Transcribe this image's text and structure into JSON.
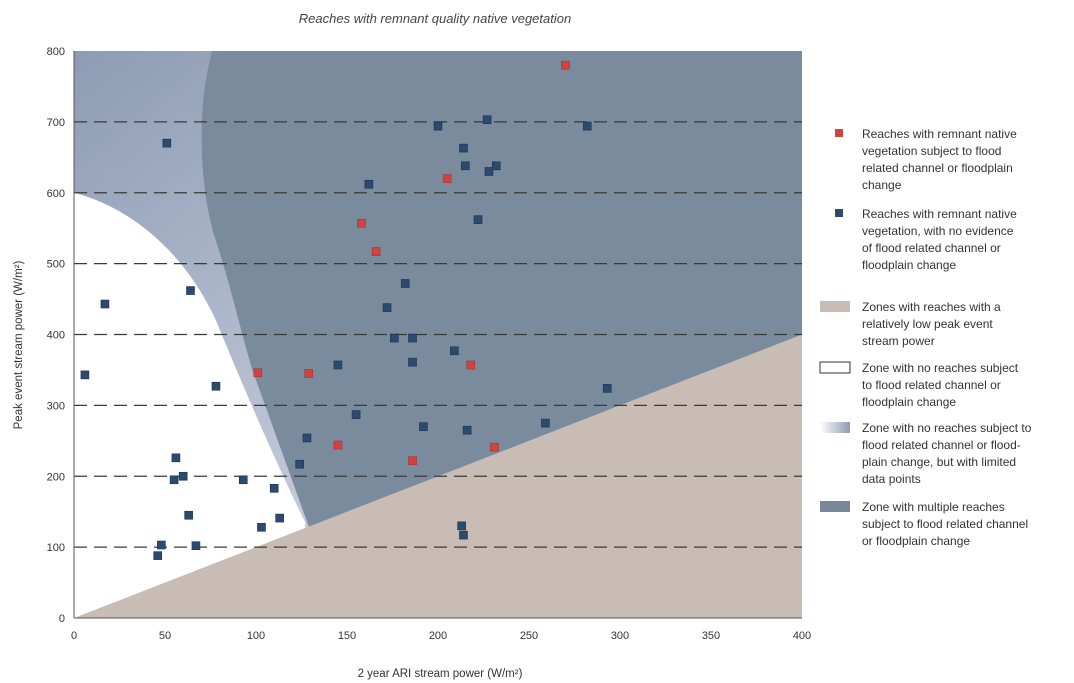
{
  "chart_data": {
    "type": "scatter",
    "title": "Reaches with remnant quality native vegetation",
    "xlabel": "2 year ARI stream power (W/m²)",
    "ylabel": "Peak event stream power (W/m²)",
    "xlim": [
      0,
      400
    ],
    "ylim": [
      0,
      800
    ],
    "x_ticks": [
      "0",
      "50",
      "100",
      "150",
      "200",
      "250",
      "300",
      "350",
      "400"
    ],
    "y_ticks": [
      "0",
      "100",
      "200",
      "300",
      "400",
      "500",
      "600",
      "700",
      "800"
    ],
    "grid": "horizontal dashed",
    "legend_position": "right",
    "series": [
      {
        "name": "Reaches with remnant native vegetation subject to flood related channel or floodplain change",
        "color": "#d04440",
        "points": [
          [
            270,
            780
          ],
          [
            205,
            620
          ],
          [
            158,
            557
          ],
          [
            166,
            517
          ],
          [
            101,
            346
          ],
          [
            129,
            345
          ],
          [
            218,
            357
          ],
          [
            145,
            244
          ],
          [
            186,
            222
          ],
          [
            231,
            241
          ]
        ]
      },
      {
        "name": "Reaches with remnant native vegetation, with no evidence of flood related channel or floodplain change",
        "color": "#2c4a6e",
        "points": [
          [
            51,
            670
          ],
          [
            200,
            694
          ],
          [
            227,
            703
          ],
          [
            282,
            694
          ],
          [
            214,
            663
          ],
          [
            215,
            638
          ],
          [
            232,
            638
          ],
          [
            228,
            630
          ],
          [
            162,
            612
          ],
          [
            222,
            562
          ],
          [
            182,
            472
          ],
          [
            172,
            438
          ],
          [
            176,
            395
          ],
          [
            186,
            395
          ],
          [
            209,
            377
          ],
          [
            186,
            361
          ],
          [
            145,
            357
          ],
          [
            155,
            287
          ],
          [
            192,
            270
          ],
          [
            216,
            265
          ],
          [
            128,
            254
          ],
          [
            124,
            217
          ],
          [
            17,
            443
          ],
          [
            64,
            462
          ],
          [
            6,
            343
          ],
          [
            78,
            327
          ],
          [
            56,
            226
          ],
          [
            60,
            200
          ],
          [
            55,
            195
          ],
          [
            93,
            195
          ],
          [
            110,
            183
          ],
          [
            63,
            145
          ],
          [
            113,
            141
          ],
          [
            103,
            128
          ],
          [
            48,
            103
          ],
          [
            67,
            102
          ],
          [
            46,
            88
          ],
          [
            213,
            130
          ],
          [
            214,
            117
          ],
          [
            259,
            275
          ],
          [
            293,
            324
          ]
        ]
      }
    ],
    "zones": [
      {
        "name": "Zones with reaches with a relatively low peak event stream power",
        "color": "#c8bcb4"
      },
      {
        "name": "Zone with no reaches subject to flood related channel or floodplain change",
        "color": "#ffffff"
      },
      {
        "name": "Zone with no  reaches subject to flood related channel or flood-plain change, but with limited data points",
        "color": "#b8c0d0"
      },
      {
        "name": "Zone with multiple reaches subject to flood related channel or floodplain change",
        "color": "#788899"
      }
    ],
    "legend": [
      {
        "lines": [
          "Reaches with remnant  native",
          "vegetation subject to flood",
          "related channel or floodplain",
          "change"
        ]
      },
      {
        "lines": [
          "Reaches with remnant  native",
          "vegetation, with no evidence",
          "of flood related channel or",
          "floodplain change"
        ]
      },
      {
        "lines": [
          "Zones with reaches with a",
          "relatively low peak event",
          "stream power"
        ]
      },
      {
        "lines": [
          "Zone with no reaches subject",
          "to flood related channel or",
          "floodplain change"
        ]
      },
      {
        "lines": [
          "Zone with no  reaches subject to",
          "flood related channel or flood-",
          "plain change, but with limited",
          "data points"
        ]
      },
      {
        "lines": [
          "Zone with multiple reaches",
          "subject to flood related channel",
          "or floodplain change"
        ]
      }
    ]
  }
}
